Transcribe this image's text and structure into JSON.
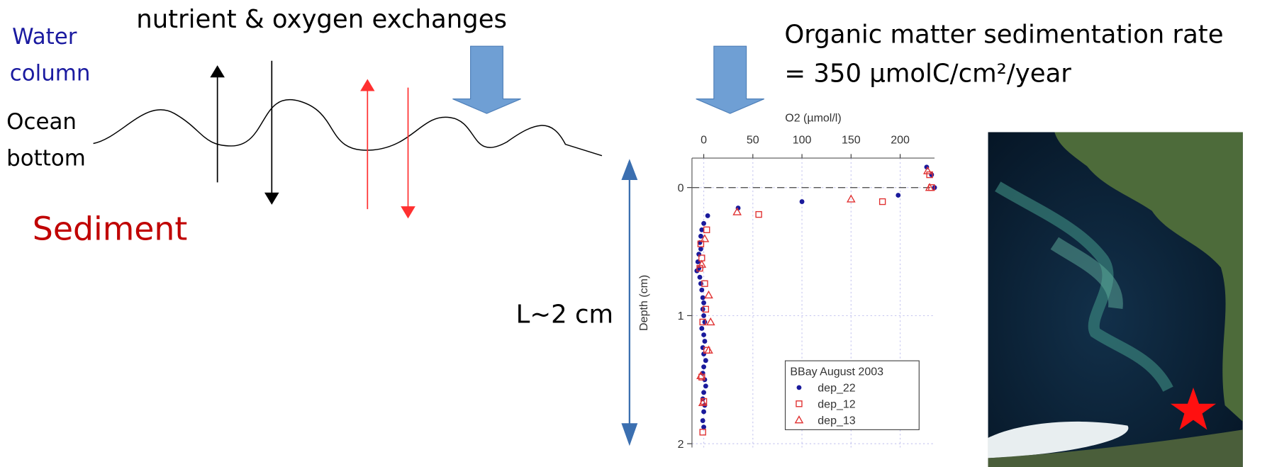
{
  "slide": {
    "water_column": [
      "Water",
      "column"
    ],
    "ocean_bottom": [
      "Ocean",
      "bottom"
    ],
    "sediment": "Sediment",
    "exchanges": "nutrient & oxygen exchanges",
    "sedimentation": [
      "Organic matter sedimentation rate",
      "= 350 µmolC/cm²/year"
    ],
    "length_scale": "L~2 cm"
  },
  "chart_data": {
    "type": "scatter",
    "x_label": "O2 (µmol/l)",
    "y_label": "Depth (cm)",
    "xlim": [
      -12,
      235
    ],
    "ylim": [
      -0.23,
      2.03
    ],
    "y_inverted": true,
    "x_axis_position": "top",
    "xticks": [
      0,
      50,
      100,
      150,
      200
    ],
    "yticks": [
      0,
      1,
      2
    ],
    "grid": true,
    "hline": 0,
    "legend_title": "BBay August 2003",
    "legend_position": "lower right",
    "series": [
      {
        "name": "dep_22",
        "color": "#1a1a9c",
        "marker": "circle",
        "x": [
          227,
          232,
          235,
          198,
          100,
          35,
          4,
          0,
          -2,
          -3,
          -4,
          -3,
          -5,
          -6,
          -5,
          -7,
          -4,
          -3,
          -2,
          -1,
          0,
          -1,
          0,
          1,
          -2,
          0,
          1,
          -1,
          0,
          2,
          0,
          -1,
          1,
          2,
          0,
          -1,
          1,
          0,
          -1,
          0
        ],
        "values": [
          -0.16,
          -0.1,
          0,
          0.06,
          0.11,
          0.16,
          0.22,
          0.28,
          0.33,
          0.38,
          0.43,
          0.48,
          0.52,
          0.58,
          0.63,
          0.65,
          0.7,
          0.75,
          0.8,
          0.86,
          0.9,
          0.95,
          1.0,
          1.05,
          1.1,
          1.15,
          1.2,
          1.25,
          1.3,
          1.35,
          1.4,
          1.45,
          1.5,
          1.55,
          1.6,
          1.65,
          1.7,
          1.75,
          1.82,
          1.87
        ]
      },
      {
        "name": "dep_12",
        "color": "#e03030",
        "marker": "square",
        "x": [
          230,
          232,
          182,
          56,
          3,
          -3,
          -2,
          -4,
          1,
          2,
          -1,
          3,
          -2,
          0,
          -1
        ],
        "values": [
          -0.1,
          0,
          0.11,
          0.21,
          0.33,
          0.44,
          0.55,
          0.63,
          0.75,
          0.95,
          1.05,
          1.27,
          1.48,
          1.67,
          1.91
        ]
      },
      {
        "name": "dep_13",
        "color": "#e03030",
        "marker": "triangle",
        "x": [
          228,
          230,
          150,
          34,
          1,
          -2,
          5,
          7,
          5,
          -3,
          -1
        ],
        "values": [
          -0.13,
          0,
          0.09,
          0.19,
          0.4,
          0.6,
          0.84,
          1.05,
          1.27,
          1.47,
          1.68
        ]
      }
    ]
  }
}
